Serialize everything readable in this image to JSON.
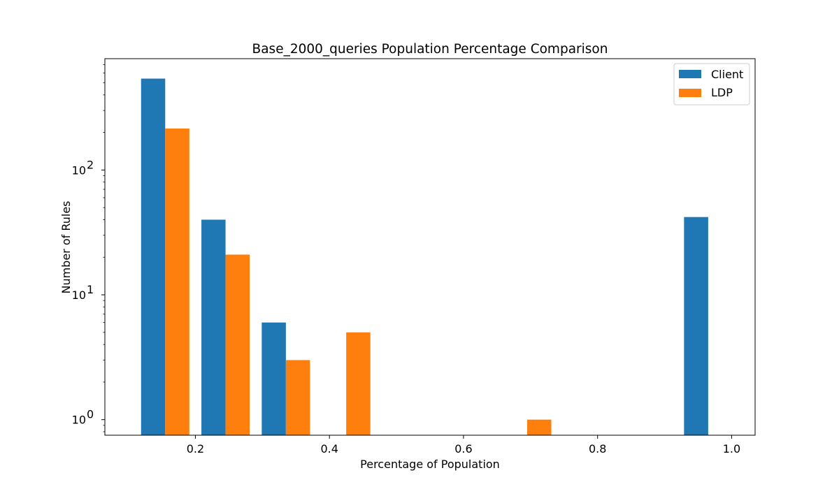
{
  "chart_data": {
    "type": "bar",
    "title": "Base_2000_queries Population Percentage Comparison",
    "xlabel": "Percentage of Population",
    "ylabel": "Number of Rules",
    "yscale": "log",
    "xlim": [
      0.065,
      1.035
    ],
    "ylim": [
      0.75,
      780
    ],
    "x_ticks": [
      0.2,
      0.4,
      0.6,
      0.8,
      1.0
    ],
    "x_tick_labels": [
      "0.2",
      "0.4",
      "0.6",
      "0.8",
      "1.0"
    ],
    "y_ticks": [
      1,
      10,
      100
    ],
    "y_tick_labels": [
      {
        "base": "10",
        "exp": "0"
      },
      {
        "base": "10",
        "exp": "1"
      },
      {
        "base": "10",
        "exp": "2"
      }
    ],
    "bin_edges": [
      0.11,
      0.2,
      0.29,
      0.38,
      0.47,
      0.56,
      0.65,
      0.74,
      0.83,
      0.92,
      1.01
    ],
    "series": [
      {
        "name": "Client",
        "color": "#1f77b4",
        "values": [
          540,
          40,
          6,
          0,
          0,
          0,
          0,
          0,
          0,
          42
        ]
      },
      {
        "name": "LDP",
        "color": "#ff7f0e",
        "values": [
          215,
          21,
          3,
          5,
          0,
          0,
          1,
          0,
          0,
          0
        ]
      }
    ],
    "legend_position": "top-right",
    "grid": false
  }
}
